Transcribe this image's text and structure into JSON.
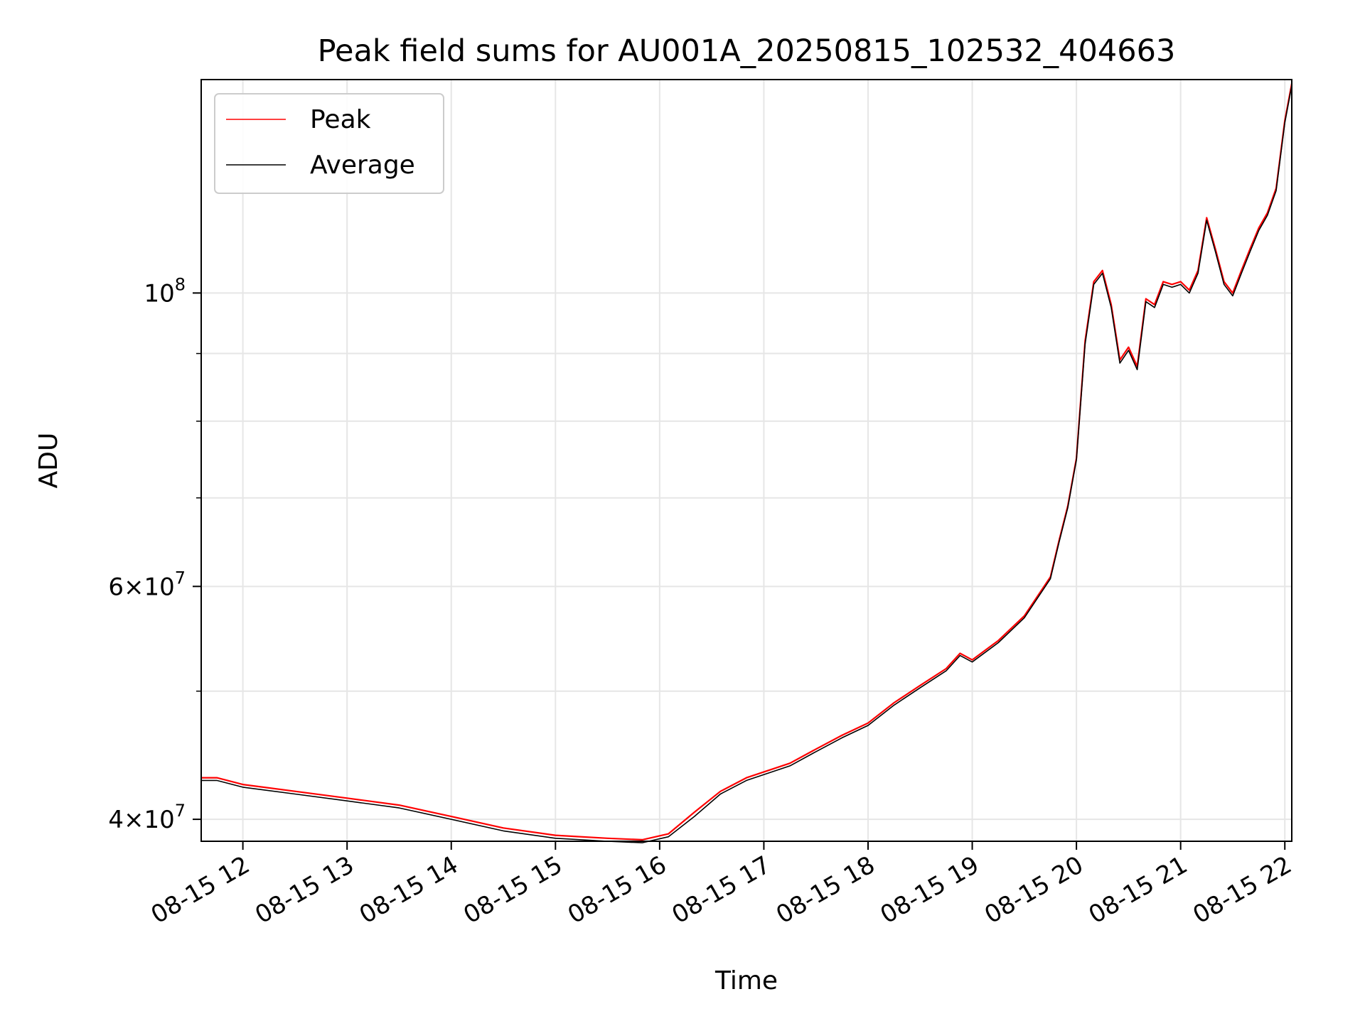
{
  "chart_data": {
    "type": "line",
    "title": "Peak field sums for AU001A_20250815_102532_404663",
    "xlabel": "Time",
    "ylabel": "ADU",
    "yscale": "log",
    "ylim": [
      38500000,
      145000000
    ],
    "xlim": [
      "08-15 11:36",
      "08-15 22:04"
    ],
    "grid": true,
    "legend_position": "upper left",
    "x_ticks": [
      {
        "t": "08-15 12:00",
        "label": "08-15 12"
      },
      {
        "t": "08-15 13:00",
        "label": "08-15 13"
      },
      {
        "t": "08-15 14:00",
        "label": "08-15 14"
      },
      {
        "t": "08-15 15:00",
        "label": "08-15 15"
      },
      {
        "t": "08-15 16:00",
        "label": "08-15 16"
      },
      {
        "t": "08-15 17:00",
        "label": "08-15 17"
      },
      {
        "t": "08-15 18:00",
        "label": "08-15 18"
      },
      {
        "t": "08-15 19:00",
        "label": "08-15 19"
      },
      {
        "t": "08-15 20:00",
        "label": "08-15 20"
      },
      {
        "t": "08-15 21:00",
        "label": "08-15 21"
      },
      {
        "t": "08-15 22:00",
        "label": "08-15 22"
      }
    ],
    "y_major_ticks": [
      {
        "value": 40000000,
        "mantissa": "4",
        "exp": "7"
      },
      {
        "value": 60000000,
        "mantissa": "6",
        "exp": "7"
      },
      {
        "value": 100000000,
        "mantissa": "",
        "exp": "8"
      }
    ],
    "y_minor_ticks": [
      50000000,
      70000000,
      80000000,
      90000000
    ],
    "series": [
      {
        "name": "Peak",
        "color": "#ff0000",
        "x": [
          "08-15 11:36",
          "08-15 11:45",
          "08-15 12:00",
          "08-15 12:30",
          "08-15 13:00",
          "08-15 13:30",
          "08-15 14:00",
          "08-15 14:30",
          "08-15 15:00",
          "08-15 15:30",
          "08-15 15:50",
          "08-15 16:05",
          "08-15 16:20",
          "08-15 16:35",
          "08-15 16:50",
          "08-15 17:15",
          "08-15 17:30",
          "08-15 17:45",
          "08-15 18:00",
          "08-15 18:15",
          "08-15 18:30",
          "08-15 18:45",
          "08-15 18:53",
          "08-15 19:00",
          "08-15 19:15",
          "08-15 19:30",
          "08-15 19:45",
          "08-15 19:50",
          "08-15 19:55",
          "08-15 20:00",
          "08-15 20:05",
          "08-15 20:10",
          "08-15 20:15",
          "08-15 20:20",
          "08-15 20:25",
          "08-15 20:30",
          "08-15 20:35",
          "08-15 20:40",
          "08-15 20:45",
          "08-15 20:50",
          "08-15 20:55",
          "08-15 21:00",
          "08-15 21:05",
          "08-15 21:10",
          "08-15 21:15",
          "08-15 21:20",
          "08-15 21:25",
          "08-15 21:30",
          "08-15 21:35",
          "08-15 21:40",
          "08-15 21:45",
          "08-15 21:50",
          "08-15 21:55",
          "08-15 22:00",
          "08-15 22:04"
        ],
        "values": [
          43000000,
          43000000,
          42500000,
          42000000,
          41500000,
          41000000,
          40200000,
          39400000,
          38900000,
          38700000,
          38600000,
          39000000,
          40500000,
          42000000,
          43000000,
          44100000,
          45200000,
          46300000,
          47300000,
          49000000,
          50500000,
          52000000,
          53400000,
          52800000,
          54600000,
          57000000,
          61000000,
          65000000,
          69000000,
          75000000,
          92000000,
          102000000,
          104000000,
          98000000,
          89000000,
          91000000,
          88000000,
          99000000,
          98000000,
          102000000,
          101500000,
          102000000,
          100500000,
          104000000,
          114000000,
          108000000,
          102000000,
          100000000,
          104000000,
          108000000,
          112000000,
          115000000,
          120000000,
          135000000,
          144000000
        ]
      },
      {
        "name": "Average",
        "color": "#000000",
        "x": [
          "08-15 11:36",
          "08-15 11:45",
          "08-15 12:00",
          "08-15 12:30",
          "08-15 13:00",
          "08-15 13:30",
          "08-15 14:00",
          "08-15 14:30",
          "08-15 15:00",
          "08-15 15:30",
          "08-15 15:50",
          "08-15 16:05",
          "08-15 16:20",
          "08-15 16:35",
          "08-15 16:50",
          "08-15 17:15",
          "08-15 17:30",
          "08-15 17:45",
          "08-15 18:00",
          "08-15 18:15",
          "08-15 18:30",
          "08-15 18:45",
          "08-15 18:53",
          "08-15 19:00",
          "08-15 19:15",
          "08-15 19:30",
          "08-15 19:45",
          "08-15 19:50",
          "08-15 19:55",
          "08-15 20:00",
          "08-15 20:05",
          "08-15 20:10",
          "08-15 20:15",
          "08-15 20:20",
          "08-15 20:25",
          "08-15 20:30",
          "08-15 20:35",
          "08-15 20:40",
          "08-15 20:45",
          "08-15 20:50",
          "08-15 20:55",
          "08-15 21:00",
          "08-15 21:05",
          "08-15 21:10",
          "08-15 21:15",
          "08-15 21:20",
          "08-15 21:25",
          "08-15 21:30",
          "08-15 21:35",
          "08-15 21:40",
          "08-15 21:45",
          "08-15 21:50",
          "08-15 21:55",
          "08-15 22:00",
          "08-15 22:04"
        ],
        "values": [
          42800000,
          42800000,
          42300000,
          41800000,
          41300000,
          40800000,
          40000000,
          39200000,
          38700000,
          38500000,
          38400000,
          38800000,
          40200000,
          41800000,
          42800000,
          43900000,
          45000000,
          46100000,
          47100000,
          48800000,
          50300000,
          51800000,
          53200000,
          52600000,
          54400000,
          56800000,
          60800000,
          64800000,
          68800000,
          74800000,
          91500000,
          101500000,
          103500000,
          97500000,
          88500000,
          90500000,
          87500000,
          98500000,
          97500000,
          101500000,
          101000000,
          101500000,
          100000000,
          103500000,
          113500000,
          107500000,
          101500000,
          99500000,
          103500000,
          107500000,
          111500000,
          114500000,
          119500000,
          134500000,
          143500000
        ]
      }
    ]
  }
}
